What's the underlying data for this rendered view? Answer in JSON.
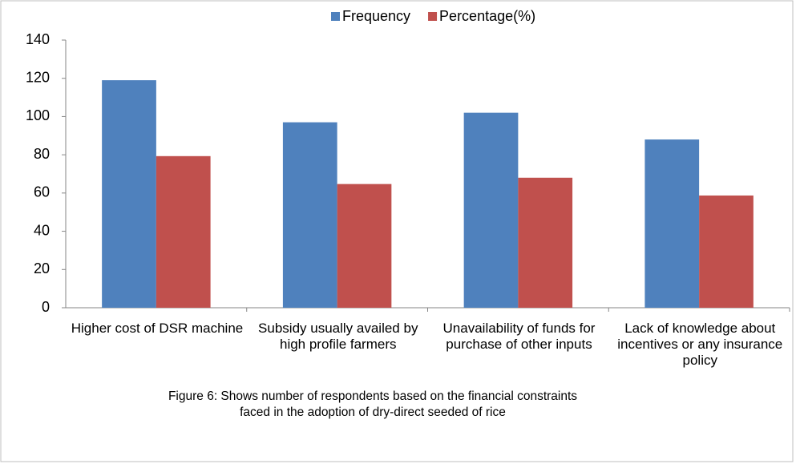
{
  "chart_data": {
    "type": "bar",
    "categories": [
      "Higher cost of DSR machine",
      "Subsidy usually availed by high profile farmers",
      "Unavailability of funds for purchase of other  inputs",
      "Lack of knowledge about  incentives or any insurance policy"
    ],
    "series": [
      {
        "name": "Frequency",
        "color": "#4f81bd",
        "values": [
          119,
          97,
          102,
          88
        ]
      },
      {
        "name": "Percentage(%)",
        "color": "#c0504d",
        "values": [
          79.3,
          64.7,
          68,
          58.7
        ]
      }
    ],
    "ylim": [
      0,
      140
    ],
    "yticks": [
      0,
      20,
      40,
      60,
      80,
      100,
      120,
      140
    ],
    "grid": false,
    "legend": "top",
    "caption": [
      "Figure 6: Shows number of respondents based on the financial constraints",
      "faced in the adoption of  dry-direct seeded of rice"
    ]
  }
}
